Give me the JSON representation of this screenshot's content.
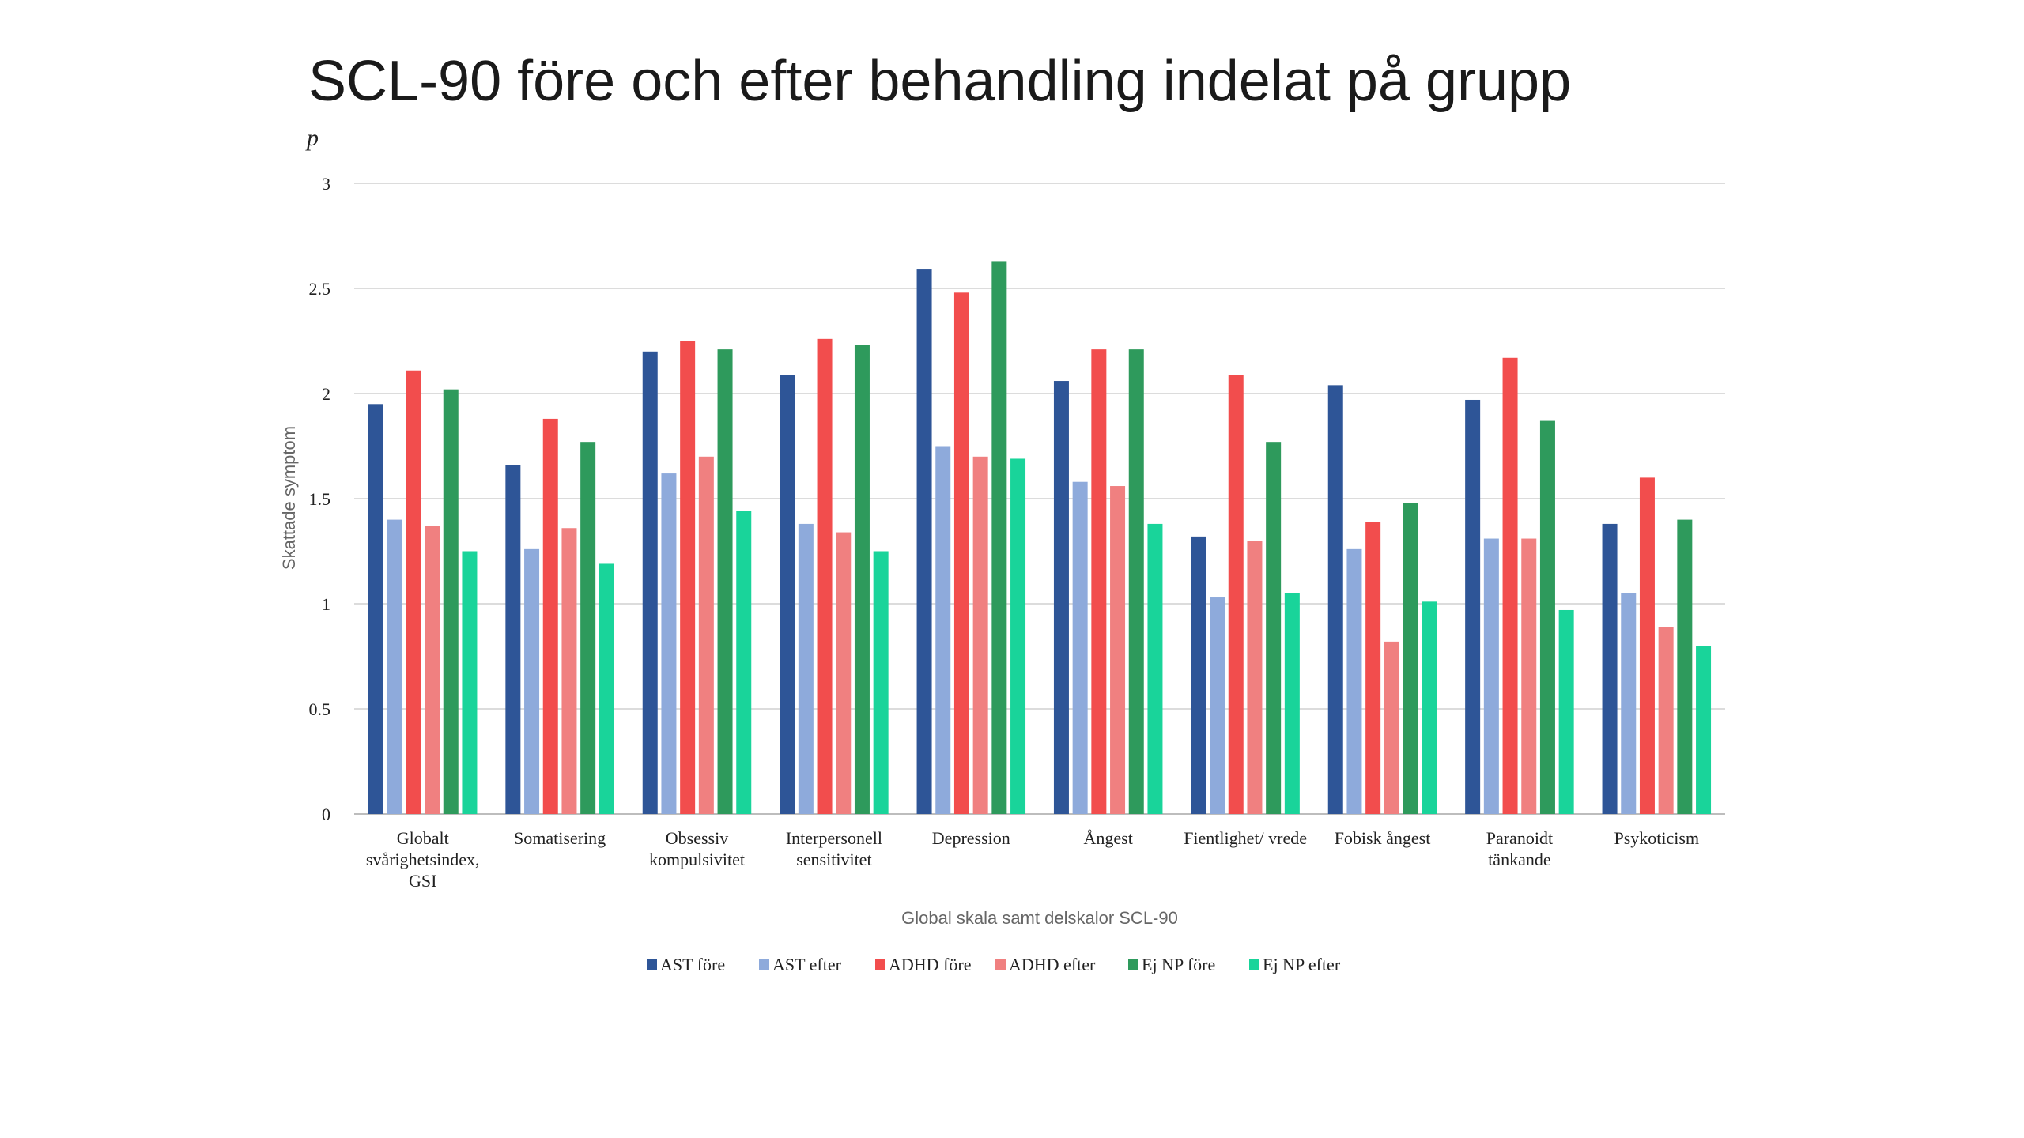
{
  "slide": {
    "title": "SCL-90 före och efter behandling indelat på grupp",
    "corner_label": "p"
  },
  "chart_data": {
    "type": "bar",
    "title": "",
    "ylabel": "Skattade symptom",
    "xlabel": "Global skala samt delskalor SCL-90",
    "ylim": [
      0,
      3
    ],
    "yticks": [
      "0",
      "0.5",
      "1",
      "1.5",
      "2",
      "2.5",
      "3"
    ],
    "grid": true,
    "legend_position": "bottom",
    "categories": [
      [
        "Globalt",
        "svårighetsindex,",
        "GSI"
      ],
      [
        "Somatisering"
      ],
      [
        "Obsessiv",
        "kompulsivitet"
      ],
      [
        "Interpersonell",
        "sensitivitet"
      ],
      [
        "Depression"
      ],
      [
        "Ångest"
      ],
      [
        "Fientlighet/ vrede"
      ],
      [
        "Fobisk ångest"
      ],
      [
        "Paranoidt",
        "tänkande"
      ],
      [
        "Psykoticism"
      ]
    ],
    "series": [
      {
        "name": "AST före",
        "color": "#2e5597",
        "values": [
          1.95,
          1.66,
          2.2,
          2.09,
          2.59,
          2.06,
          1.32,
          2.04,
          1.97,
          1.38
        ]
      },
      {
        "name": "AST efter",
        "color": "#8eaadb",
        "values": [
          1.4,
          1.26,
          1.62,
          1.38,
          1.75,
          1.58,
          1.03,
          1.26,
          1.31,
          1.05
        ]
      },
      {
        "name": "ADHD före",
        "color": "#f24d4d",
        "values": [
          2.11,
          1.88,
          2.25,
          2.26,
          2.48,
          2.21,
          2.09,
          1.39,
          2.17,
          1.6
        ]
      },
      {
        "name": "ADHD efter",
        "color": "#f08080",
        "values": [
          1.37,
          1.36,
          1.7,
          1.34,
          1.7,
          1.56,
          1.3,
          0.82,
          1.31,
          0.89
        ]
      },
      {
        "name": "Ej NP före",
        "color": "#2e9a5c",
        "values": [
          2.02,
          1.77,
          2.21,
          2.23,
          2.63,
          2.21,
          1.77,
          1.48,
          1.87,
          1.4
        ]
      },
      {
        "name": "Ej NP efter",
        "color": "#19d49a",
        "values": [
          1.25,
          1.19,
          1.44,
          1.25,
          1.69,
          1.38,
          1.05,
          1.01,
          0.97,
          0.8
        ]
      }
    ]
  }
}
